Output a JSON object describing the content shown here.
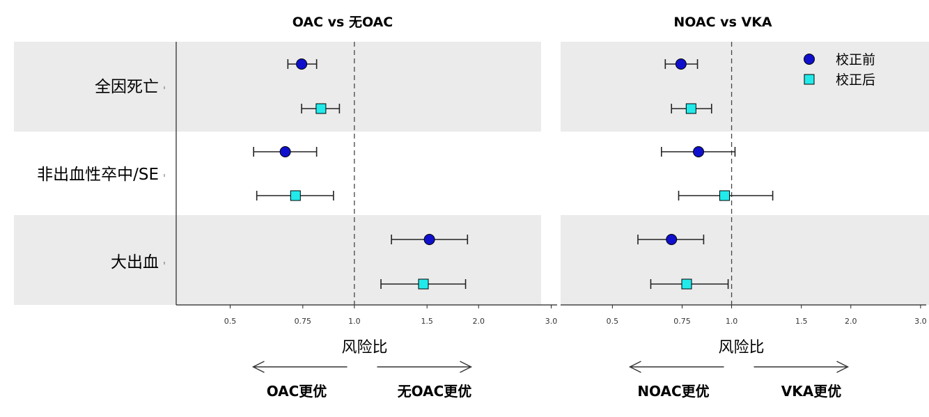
{
  "chart_data": [
    {
      "type": "forest",
      "title": "OAC vs 无OAC",
      "xlabel": "风险比",
      "x_scale": "log",
      "xticks": [
        "0.5",
        "0.75",
        "1.0",
        "1.5",
        "2.0",
        "3.0"
      ],
      "xtick_values": [
        0.5,
        0.75,
        1.0,
        1.5,
        2.0,
        3.0
      ],
      "xlim": [
        0.37,
        3.1
      ],
      "reference_line": 1.0,
      "direction_labels": {
        "left": "OAC更优",
        "right": "无OAC更优"
      },
      "categories": [
        "全因死亡",
        "非出血性卒中/SE",
        "大出血"
      ],
      "series": [
        {
          "name": "校正前",
          "estimate": [
            0.745,
            0.68,
            1.52
          ],
          "ci_low": [
            0.69,
            0.57,
            1.23
          ],
          "ci_high": [
            0.81,
            0.81,
            1.88
          ]
        },
        {
          "name": "校正后",
          "estimate": [
            0.83,
            0.72,
            1.47
          ],
          "ci_low": [
            0.745,
            0.58,
            1.16
          ],
          "ci_high": [
            0.92,
            0.89,
            1.86
          ]
        }
      ]
    },
    {
      "type": "forest",
      "title": "NOAC vs VKA",
      "xlabel": "风险比",
      "x_scale": "log",
      "xticks": [
        "0.5",
        "0.75",
        "1.0",
        "1.5",
        "2.0",
        "3.0"
      ],
      "xtick_values": [
        0.5,
        0.75,
        1.0,
        1.5,
        2.0,
        3.0
      ],
      "xlim": [
        0.37,
        3.1
      ],
      "reference_line": 1.0,
      "direction_labels": {
        "left": "NOAC更优",
        "right": "VKA更优"
      },
      "legend": {
        "position": "top-right"
      },
      "categories": [
        "全因死亡",
        "非出血性卒中/SE",
        "大出血"
      ],
      "series": [
        {
          "name": "校正前",
          "estimate": [
            0.745,
            0.825,
            0.705
          ],
          "ci_low": [
            0.68,
            0.665,
            0.58
          ],
          "ci_high": [
            0.82,
            1.02,
            0.85
          ]
        },
        {
          "name": "校正后",
          "estimate": [
            0.79,
            0.96,
            0.77
          ],
          "ci_low": [
            0.705,
            0.735,
            0.625
          ],
          "ci_high": [
            0.89,
            1.27,
            0.98
          ]
        }
      ]
    }
  ],
  "style": {
    "before_color": "#1010CC",
    "after_color": "#22EAEA",
    "band_color": "#EBEBEB",
    "marker_before": "circle",
    "marker_after": "square"
  }
}
